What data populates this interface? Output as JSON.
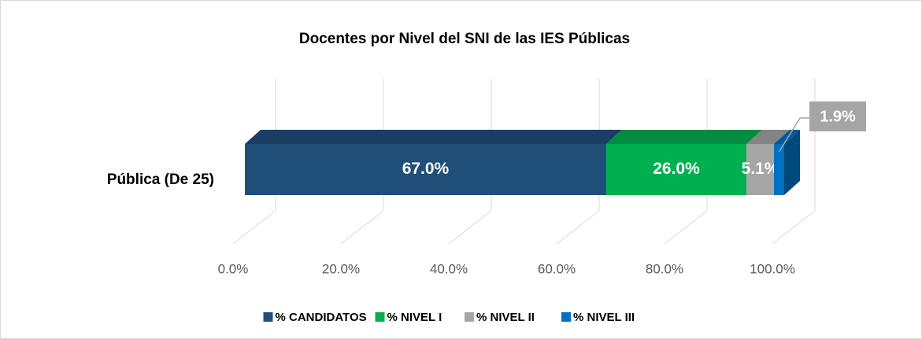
{
  "chart_data": {
    "type": "bar",
    "orientation": "horizontal",
    "stacked": true,
    "title": "Docentes por Nivel del SNI de las IES Públicas",
    "categories": [
      "Pública (De 25)"
    ],
    "series": [
      {
        "name": "% CANDIDATOS",
        "color": "#1f4e79",
        "values": [
          67.0
        ],
        "value_labels": [
          "67.0%"
        ]
      },
      {
        "name": "% NIVEL I",
        "color": "#00b050",
        "values": [
          26.0
        ],
        "value_labels": [
          "26.0%"
        ]
      },
      {
        "name": "% NIVEL II",
        "color": "#a5a5a5",
        "values": [
          5.1
        ],
        "value_labels": [
          "5.1%"
        ]
      },
      {
        "name": "% NIVEL III",
        "color": "#0070c0",
        "values": [
          1.9
        ],
        "value_labels": [
          "1.9%"
        ]
      }
    ],
    "xlim": [
      0,
      100
    ],
    "xticks": [
      {
        "value": 0,
        "label": "0.0%"
      },
      {
        "value": 20,
        "label": "20.0%"
      },
      {
        "value": 40,
        "label": "40.0%"
      },
      {
        "value": 60,
        "label": "60.0%"
      },
      {
        "value": 80,
        "label": "80.0%"
      },
      {
        "value": 100,
        "label": "100.0%"
      }
    ],
    "grid": true,
    "legend": "bottom"
  }
}
